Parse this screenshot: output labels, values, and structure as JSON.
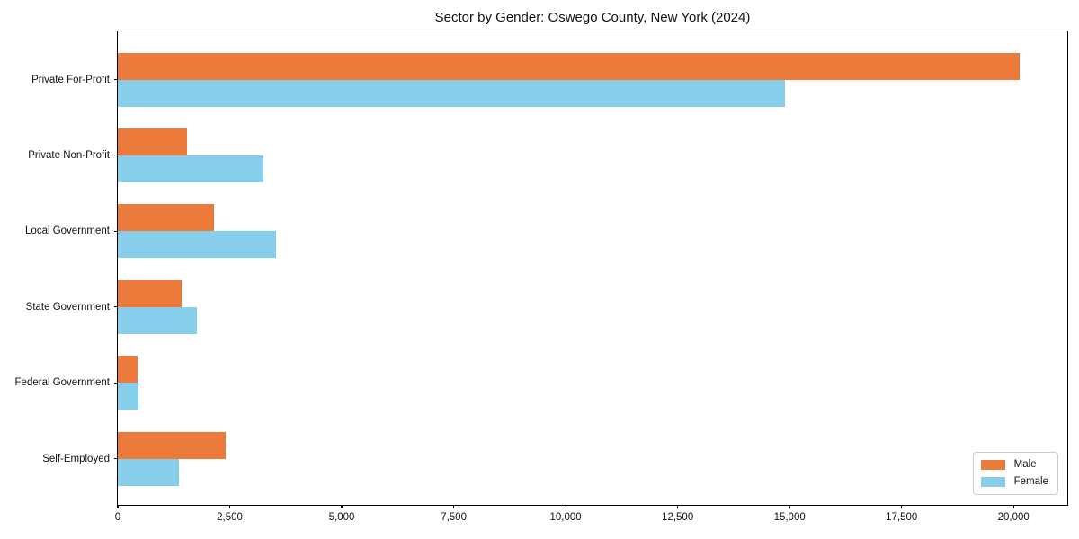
{
  "title": "Sector by Gender: Oswego County, New York (2024)",
  "colors": {
    "male": "#eb7a3b",
    "female": "#87ceeb",
    "spine": "#000000",
    "legend_border": "#cccccc",
    "background": "#ffffff"
  },
  "legend": {
    "position": "lower right",
    "items": [
      {
        "label": "Male",
        "color": "#eb7a3b"
      },
      {
        "label": "Female",
        "color": "#87ceeb"
      }
    ]
  },
  "chart_data": {
    "type": "bar",
    "orientation": "horizontal",
    "title": "Sector by Gender: Oswego County, New York (2024)",
    "xlabel": "",
    "ylabel": "",
    "categories": [
      "Private For-Profit",
      "Private Non-Profit",
      "Local Government",
      "State Government",
      "Federal Government",
      "Self-Employed"
    ],
    "series": [
      {
        "name": "Male",
        "color": "#eb7a3b",
        "values": [
          20140,
          1540,
          2140,
          1420,
          440,
          2400
        ]
      },
      {
        "name": "Female",
        "color": "#87ceeb",
        "values": [
          14890,
          3250,
          3530,
          1760,
          460,
          1360
        ]
      }
    ],
    "xlim": [
      0,
      21200
    ],
    "x_ticks": [
      0,
      2500,
      5000,
      7500,
      10000,
      12500,
      15000,
      17500,
      20000
    ],
    "x_tick_labels": [
      "0",
      "2,500",
      "5,000",
      "7,500",
      "10,000",
      "12,500",
      "15,000",
      "17,500",
      "20,000"
    ],
    "grid": false,
    "legend_position": "lower right"
  }
}
